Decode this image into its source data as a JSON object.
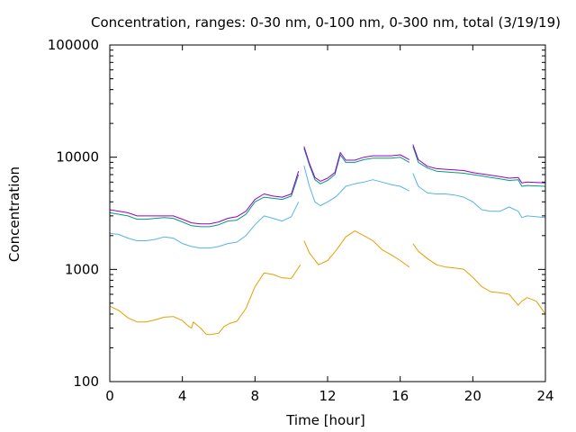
{
  "chart_data": {
    "type": "line",
    "title": "Concentration, ranges: 0-30 nm, 0-100 nm, 0-300 nm, total (3/19/19)",
    "xlabel": "Time [hour]",
    "ylabel": "Concentration",
    "xlim": [
      0,
      24
    ],
    "ylim": [
      100,
      100000
    ],
    "yscale": "log",
    "grid": false,
    "x_ticks": [
      0,
      4,
      8,
      12,
      16,
      20,
      24
    ],
    "x_tick_labels": [
      "0",
      "4",
      "8",
      "12",
      "16",
      "20",
      "24"
    ],
    "y_ticks": [
      100,
      1000,
      10000,
      100000
    ],
    "y_tick_labels": [
      "100",
      "1000",
      "10000",
      "100000"
    ],
    "colors": {
      "0-30 nm": "#e69f00",
      "0-100 nm": "#56b4e9",
      "0-300 nm": "#009e73",
      "total": "#9400d3"
    },
    "series": [
      {
        "key": "0-30 nm",
        "segments": [
          [
            [
              0,
              470
            ],
            [
              0.5,
              430
            ],
            [
              1,
              370
            ],
            [
              1.5,
              340
            ],
            [
              2,
              340
            ],
            [
              2.5,
              355
            ],
            [
              3,
              375
            ],
            [
              3.5,
              380
            ],
            [
              4,
              350
            ],
            [
              4.3,
              315
            ],
            [
              4.5,
              300
            ],
            [
              4.6,
              340
            ],
            [
              5,
              300
            ],
            [
              5.3,
              265
            ],
            [
              5.5,
              262
            ],
            [
              6,
              270
            ],
            [
              6.3,
              310
            ],
            [
              6.6,
              330
            ],
            [
              7,
              345
            ],
            [
              7.5,
              450
            ],
            [
              8,
              700
            ],
            [
              8.5,
              930
            ],
            [
              9,
              900
            ],
            [
              9.5,
              840
            ],
            [
              10,
              830
            ],
            [
              10.5,
              1100
            ]
          ],
          [
            [
              10.7,
              1800
            ],
            [
              11,
              1400
            ],
            [
              11.5,
              1100
            ],
            [
              12,
              1200
            ],
            [
              12.5,
              1500
            ],
            [
              13,
              1950
            ],
            [
              13.5,
              2200
            ],
            [
              14,
              2000
            ],
            [
              14.5,
              1800
            ],
            [
              15,
              1500
            ],
            [
              15.5,
              1350
            ],
            [
              16,
              1200
            ],
            [
              16.5,
              1050
            ]
          ],
          [
            [
              16.7,
              1700
            ],
            [
              17,
              1450
            ],
            [
              17.5,
              1250
            ],
            [
              18,
              1100
            ],
            [
              18.5,
              1050
            ],
            [
              19,
              1030
            ],
            [
              19.5,
              1000
            ],
            [
              20,
              850
            ],
            [
              20.5,
              700
            ],
            [
              21,
              630
            ],
            [
              21.5,
              620
            ],
            [
              22,
              600
            ],
            [
              22.5,
              480
            ],
            [
              22.7,
              520
            ],
            [
              23,
              560
            ],
            [
              23.5,
              520
            ],
            [
              24,
              400
            ]
          ]
        ]
      },
      {
        "key": "0-100 nm",
        "segments": [
          [
            [
              0,
              2100
            ],
            [
              0.5,
              2050
            ],
            [
              1,
              1900
            ],
            [
              1.5,
              1800
            ],
            [
              2,
              1800
            ],
            [
              2.5,
              1850
            ],
            [
              3,
              1950
            ],
            [
              3.5,
              1900
            ],
            [
              4,
              1700
            ],
            [
              4.5,
              1600
            ],
            [
              5,
              1550
            ],
            [
              5.5,
              1550
            ],
            [
              6,
              1600
            ],
            [
              6.5,
              1700
            ],
            [
              7,
              1750
            ],
            [
              7.5,
              2000
            ],
            [
              8,
              2500
            ],
            [
              8.5,
              3000
            ],
            [
              9,
              2850
            ],
            [
              9.5,
              2700
            ],
            [
              10,
              2950
            ],
            [
              10.4,
              4000
            ]
          ],
          [
            [
              10.7,
              8400
            ],
            [
              11,
              5500
            ],
            [
              11.3,
              4000
            ],
            [
              11.6,
              3700
            ],
            [
              12,
              4000
            ],
            [
              12.5,
              4500
            ],
            [
              13,
              5500
            ],
            [
              13.5,
              5800
            ],
            [
              14,
              6000
            ],
            [
              14.5,
              6300
            ],
            [
              15,
              6000
            ],
            [
              15.5,
              5700
            ],
            [
              16,
              5500
            ],
            [
              16.5,
              5000
            ]
          ],
          [
            [
              16.7,
              7200
            ],
            [
              17,
              5500
            ],
            [
              17.5,
              4800
            ],
            [
              18,
              4700
            ],
            [
              18.5,
              4700
            ],
            [
              19,
              4600
            ],
            [
              19.5,
              4400
            ],
            [
              20,
              4000
            ],
            [
              20.5,
              3400
            ],
            [
              21,
              3300
            ],
            [
              21.5,
              3300
            ],
            [
              22,
              3600
            ],
            [
              22.5,
              3300
            ],
            [
              22.7,
              2900
            ],
            [
              23,
              3000
            ],
            [
              24,
              2900
            ]
          ]
        ]
      },
      {
        "key": "0-300 nm",
        "segments": [
          [
            [
              0,
              3200
            ],
            [
              0.5,
              3100
            ],
            [
              1,
              3000
            ],
            [
              1.5,
              2800
            ],
            [
              2,
              2800
            ],
            [
              2.5,
              2850
            ],
            [
              3,
              2900
            ],
            [
              3.5,
              2850
            ],
            [
              4,
              2650
            ],
            [
              4.5,
              2450
            ],
            [
              5,
              2400
            ],
            [
              5.5,
              2400
            ],
            [
              6,
              2500
            ],
            [
              6.5,
              2700
            ],
            [
              7,
              2750
            ],
            [
              7.5,
              3100
            ],
            [
              8,
              4000
            ],
            [
              8.5,
              4400
            ],
            [
              9,
              4300
            ],
            [
              9.5,
              4200
            ],
            [
              10,
              4500
            ],
            [
              10.4,
              7000
            ]
          ],
          [
            [
              10.7,
              12000
            ],
            [
              11,
              8500
            ],
            [
              11.3,
              6300
            ],
            [
              11.6,
              5800
            ],
            [
              12,
              6200
            ],
            [
              12.4,
              7000
            ],
            [
              12.7,
              10500
            ],
            [
              13,
              9000
            ],
            [
              13.5,
              9000
            ],
            [
              14,
              9500
            ],
            [
              14.5,
              9800
            ],
            [
              15,
              9800
            ],
            [
              15.5,
              9800
            ],
            [
              16,
              10000
            ],
            [
              16.5,
              9000
            ]
          ],
          [
            [
              16.7,
              12500
            ],
            [
              17,
              9000
            ],
            [
              17.5,
              8000
            ],
            [
              18,
              7500
            ],
            [
              18.5,
              7400
            ],
            [
              19,
              7300
            ],
            [
              19.5,
              7200
            ],
            [
              20,
              7000
            ],
            [
              20.5,
              6800
            ],
            [
              21,
              6600
            ],
            [
              21.5,
              6400
            ],
            [
              22,
              6200
            ],
            [
              22.5,
              6300
            ],
            [
              22.7,
              5500
            ],
            [
              23,
              5600
            ],
            [
              24,
              5500
            ]
          ]
        ]
      },
      {
        "key": "total",
        "segments": [
          [
            [
              0,
              3400
            ],
            [
              0.5,
              3300
            ],
            [
              1,
              3200
            ],
            [
              1.5,
              3000
            ],
            [
              2,
              3000
            ],
            [
              2.5,
              3000
            ],
            [
              3,
              3000
            ],
            [
              3.5,
              3000
            ],
            [
              4,
              2800
            ],
            [
              4.5,
              2600
            ],
            [
              5,
              2550
            ],
            [
              5.5,
              2550
            ],
            [
              6,
              2650
            ],
            [
              6.5,
              2850
            ],
            [
              7,
              2950
            ],
            [
              7.5,
              3300
            ],
            [
              8,
              4200
            ],
            [
              8.5,
              4700
            ],
            [
              9,
              4500
            ],
            [
              9.5,
              4400
            ],
            [
              10,
              4700
            ],
            [
              10.4,
              7500
            ]
          ],
          [
            [
              10.7,
              12500
            ],
            [
              11,
              8800
            ],
            [
              11.3,
              6600
            ],
            [
              11.6,
              6100
            ],
            [
              12,
              6500
            ],
            [
              12.4,
              7300
            ],
            [
              12.7,
              11000
            ],
            [
              13,
              9400
            ],
            [
              13.5,
              9400
            ],
            [
              14,
              10000
            ],
            [
              14.5,
              10300
            ],
            [
              15,
              10300
            ],
            [
              15.5,
              10300
            ],
            [
              16,
              10500
            ],
            [
              16.5,
              9500
            ]
          ],
          [
            [
              16.7,
              13000
            ],
            [
              17,
              9500
            ],
            [
              17.5,
              8300
            ],
            [
              18,
              7900
            ],
            [
              18.5,
              7800
            ],
            [
              19,
              7700
            ],
            [
              19.5,
              7600
            ],
            [
              20,
              7300
            ],
            [
              20.5,
              7100
            ],
            [
              21,
              6900
            ],
            [
              21.5,
              6700
            ],
            [
              22,
              6500
            ],
            [
              22.5,
              6600
            ],
            [
              22.7,
              5900
            ],
            [
              23,
              6000
            ],
            [
              24,
              5900
            ]
          ]
        ]
      }
    ]
  }
}
